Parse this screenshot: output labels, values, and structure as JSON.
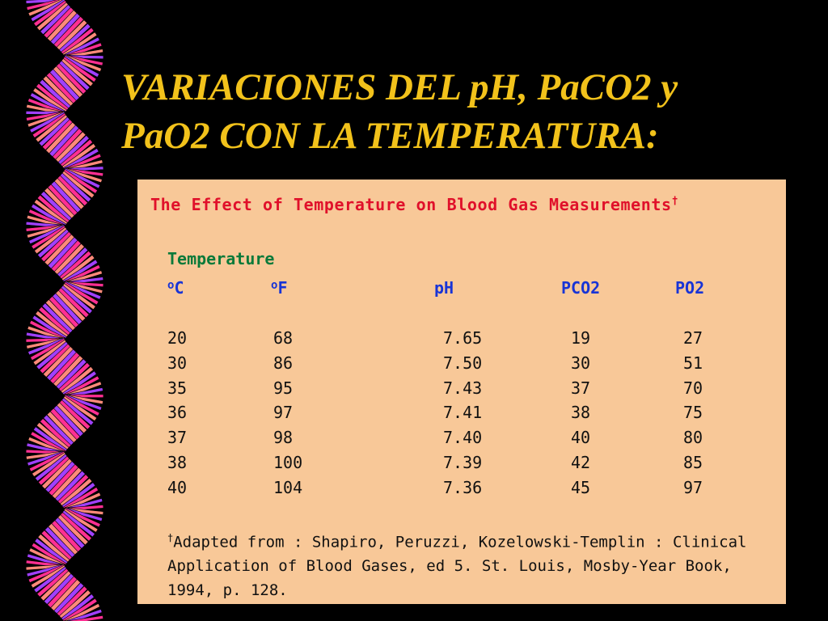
{
  "slide": {
    "title_line1": "VARIACIONES DEL pH, PaCO2 y",
    "title_line2": "PaO2 CON LA TEMPERATURA:"
  },
  "decoration": {
    "icon": "wavy-ribbon",
    "colors": [
      "#ff2f92",
      "#ff8a7a",
      "#a040ff"
    ]
  },
  "table": {
    "title": "The Effect of Temperature on Blood Gas Measurements",
    "title_mark": "†",
    "group_label": "Temperature",
    "headers": {
      "celsius_sup": "o",
      "celsius": "C",
      "fahrenheit_sup": "o",
      "fahrenheit": "F",
      "ph": "pH",
      "pco2": "PCO2",
      "po2": "PO2"
    },
    "rows": [
      [
        "20",
        "68",
        "7.65",
        "19",
        "27"
      ],
      [
        "30",
        "86",
        "7.50",
        "30",
        "51"
      ],
      [
        "35",
        "95",
        "7.43",
        "37",
        "70"
      ],
      [
        "36",
        "97",
        "7.41",
        "38",
        "75"
      ],
      [
        "37",
        "98",
        "7.40",
        "40",
        "80"
      ],
      [
        "38",
        "100",
        "7.39",
        "42",
        "85"
      ],
      [
        "40",
        "104",
        "7.36",
        "45",
        "97"
      ]
    ],
    "footnote_mark": "†",
    "footnote_line1": "Adapted from : Shapiro, Peruzzi, Kozelowski-Templin : Clinical",
    "footnote_line2": "Application of Blood Gases, ed 5.  St. Louis, Mosby-Year Book,",
    "footnote_line3": "1994, p. 128."
  }
}
